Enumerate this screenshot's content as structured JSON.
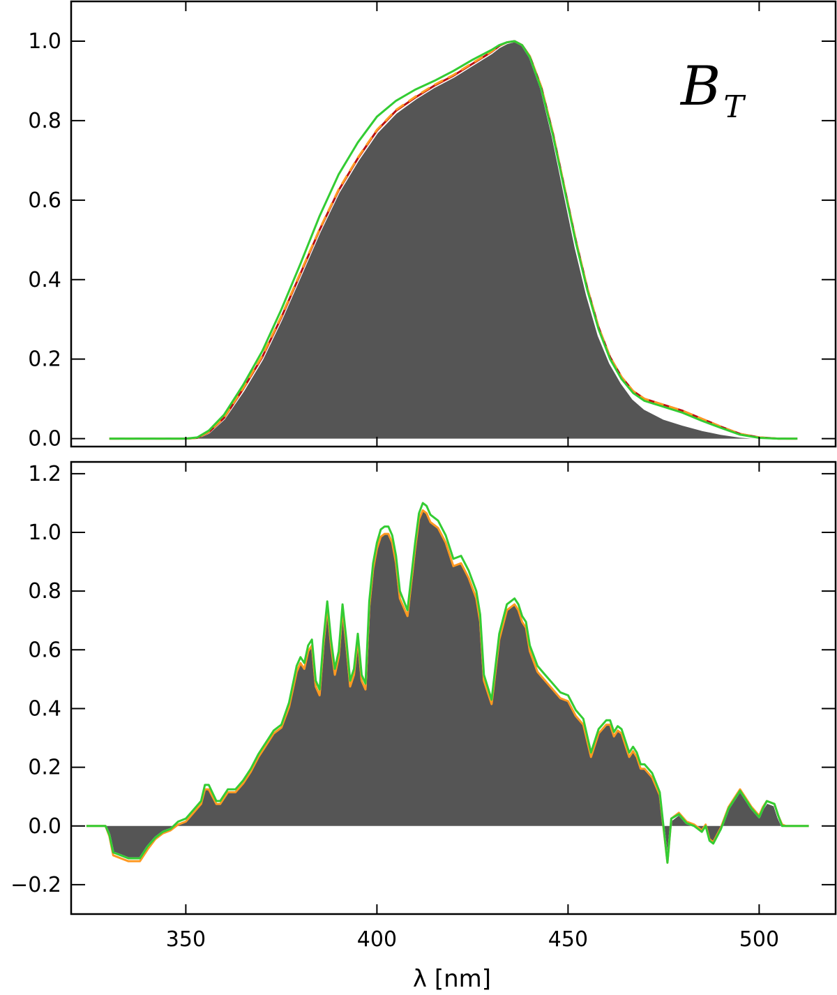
{
  "colors": {
    "fill": "#555555",
    "white_line": "#ffffff",
    "red_line": "#bb1111",
    "orange_line": "#ff9922",
    "green_line": "#33cc33",
    "axes": "#000000"
  },
  "chart_data": [
    {
      "type": "area",
      "panel": "top",
      "title": "",
      "annotation": {
        "main": "B",
        "sub": "T"
      },
      "xlabel": "",
      "ylabel": "",
      "xlim": [
        320,
        520
      ],
      "ylim": [
        -0.02,
        1.1
      ],
      "xticks": [
        350,
        400,
        450,
        500
      ],
      "yticks": [
        0.0,
        0.2,
        0.4,
        0.6,
        0.8,
        1.0
      ],
      "ytick_labels": [
        "0.0",
        "0.2",
        "0.4",
        "0.6",
        "0.8",
        "1.0"
      ],
      "grid": false,
      "x": [
        330,
        340,
        350,
        353,
        356,
        360,
        365,
        370,
        375,
        380,
        385,
        390,
        395,
        400,
        405,
        410,
        415,
        420,
        425,
        430,
        432,
        434,
        436,
        438,
        440,
        443,
        446,
        449,
        452,
        455,
        458,
        461,
        464,
        467,
        470,
        475,
        480,
        485,
        490,
        495,
        500,
        505,
        510
      ],
      "series": [
        {
          "role": "fill",
          "style": "fill",
          "values": [
            0,
            0,
            0,
            0.002,
            0.015,
            0.05,
            0.12,
            0.2,
            0.3,
            0.41,
            0.52,
            0.62,
            0.7,
            0.77,
            0.82,
            0.855,
            0.885,
            0.91,
            0.94,
            0.97,
            0.985,
            0.995,
            1.0,
            0.99,
            0.96,
            0.88,
            0.76,
            0.62,
            0.48,
            0.36,
            0.26,
            0.19,
            0.14,
            0.1,
            0.075,
            0.05,
            0.035,
            0.022,
            0.012,
            0.005,
            0.001,
            0,
            0
          ]
        },
        {
          "role": "white",
          "style": "solid",
          "values": [
            0,
            0,
            0,
            0.002,
            0.015,
            0.05,
            0.12,
            0.2,
            0.3,
            0.41,
            0.52,
            0.62,
            0.7,
            0.77,
            0.82,
            0.855,
            0.885,
            0.91,
            0.94,
            0.97,
            0.985,
            0.995,
            1.0,
            0.99,
            0.96,
            0.88,
            0.76,
            0.62,
            0.48,
            0.36,
            0.26,
            0.19,
            0.14,
            0.1,
            0.075,
            0.05,
            0.035,
            0.022,
            0.012,
            0.005,
            0.001,
            0,
            0
          ]
        },
        {
          "role": "red",
          "style": "solid",
          "values": [
            0,
            0,
            0,
            0.002,
            0.016,
            0.052,
            0.125,
            0.205,
            0.305,
            0.415,
            0.525,
            0.625,
            0.705,
            0.775,
            0.825,
            0.858,
            0.888,
            0.913,
            0.943,
            0.973,
            0.988,
            0.997,
            1.0,
            0.99,
            0.962,
            0.885,
            0.77,
            0.635,
            0.5,
            0.38,
            0.28,
            0.205,
            0.155,
            0.12,
            0.1,
            0.085,
            0.07,
            0.05,
            0.03,
            0.012,
            0.003,
            0,
            0
          ]
        },
        {
          "role": "orange",
          "style": "dashed",
          "values": [
            0,
            0,
            0,
            0.002,
            0.017,
            0.053,
            0.127,
            0.208,
            0.308,
            0.418,
            0.527,
            0.627,
            0.707,
            0.777,
            0.827,
            0.86,
            0.89,
            0.915,
            0.945,
            0.974,
            0.989,
            0.997,
            1.0,
            0.99,
            0.962,
            0.885,
            0.77,
            0.635,
            0.5,
            0.38,
            0.28,
            0.205,
            0.155,
            0.12,
            0.1,
            0.085,
            0.07,
            0.05,
            0.03,
            0.012,
            0.003,
            0,
            0
          ]
        },
        {
          "role": "green",
          "style": "solid",
          "values": [
            0,
            0,
            0,
            0.003,
            0.02,
            0.06,
            0.135,
            0.22,
            0.325,
            0.44,
            0.56,
            0.665,
            0.745,
            0.81,
            0.85,
            0.878,
            0.9,
            0.925,
            0.953,
            0.978,
            0.99,
            0.997,
            1.0,
            0.99,
            0.96,
            0.88,
            0.765,
            0.63,
            0.495,
            0.375,
            0.275,
            0.2,
            0.15,
            0.115,
            0.095,
            0.08,
            0.065,
            0.045,
            0.027,
            0.01,
            0.002,
            0,
            0
          ]
        }
      ]
    },
    {
      "type": "area",
      "panel": "bottom",
      "title": "",
      "xlabel": "λ [nm]",
      "ylabel": "",
      "xlim": [
        320,
        520
      ],
      "ylim": [
        -0.3,
        1.24
      ],
      "xticks": [
        350,
        400,
        450,
        500
      ],
      "xtick_labels": [
        "350",
        "400",
        "450",
        "500"
      ],
      "yticks": [
        -0.2,
        0.0,
        0.2,
        0.4,
        0.6,
        0.8,
        1.0,
        1.2
      ],
      "ytick_labels": [
        "−0.2",
        "0.0",
        "0.2",
        "0.4",
        "0.6",
        "0.8",
        "1.0",
        "1.2"
      ],
      "grid": false,
      "x": [
        324,
        329,
        330,
        331,
        333,
        335,
        336,
        338,
        340,
        342,
        344,
        346,
        348,
        350,
        352,
        354,
        355,
        356,
        358,
        359,
        361,
        363,
        365,
        367,
        369,
        371,
        373,
        375,
        377,
        379,
        380,
        381,
        382,
        383,
        384,
        385,
        386,
        387,
        388,
        389,
        390,
        391,
        392,
        393,
        394,
        395,
        396,
        397,
        398,
        399,
        400,
        401,
        402,
        403,
        404,
        405,
        406,
        408,
        410,
        411,
        412,
        413,
        414,
        415,
        416,
        418,
        420,
        422,
        424,
        426,
        427,
        428,
        430,
        432,
        434,
        435,
        436,
        437,
        438,
        439,
        440,
        442,
        444,
        446,
        448,
        450,
        452,
        454,
        456,
        458,
        460,
        461,
        462,
        463,
        464,
        465,
        466,
        467,
        468,
        469,
        470,
        472,
        474,
        476,
        477,
        479,
        481,
        483,
        485,
        486,
        487,
        488,
        490,
        492,
        494,
        495,
        496,
        498,
        500,
        501,
        502,
        504,
        505,
        506,
        507,
        508,
        509,
        510,
        513
      ],
      "series": [
        {
          "role": "fill",
          "style": "fill",
          "values": [
            0,
            0,
            -0.03,
            -0.09,
            -0.1,
            -0.11,
            -0.11,
            -0.11,
            -0.07,
            -0.04,
            -0.02,
            -0.01,
            0.01,
            0.02,
            0.05,
            0.08,
            0.13,
            0.13,
            0.08,
            0.08,
            0.12,
            0.12,
            0.15,
            0.19,
            0.24,
            0.28,
            0.32,
            0.34,
            0.41,
            0.53,
            0.56,
            0.54,
            0.6,
            0.62,
            0.48,
            0.45,
            0.62,
            0.75,
            0.62,
            0.52,
            0.58,
            0.74,
            0.62,
            0.48,
            0.52,
            0.64,
            0.5,
            0.47,
            0.75,
            0.88,
            0.95,
            0.99,
            1.0,
            1.0,
            0.97,
            0.9,
            0.78,
            0.72,
            0.95,
            1.05,
            1.08,
            1.07,
            1.04,
            1.03,
            1.02,
            0.97,
            0.89,
            0.9,
            0.85,
            0.78,
            0.7,
            0.5,
            0.42,
            0.64,
            0.74,
            0.75,
            0.76,
            0.74,
            0.7,
            0.68,
            0.6,
            0.53,
            0.5,
            0.47,
            0.44,
            0.43,
            0.38,
            0.35,
            0.24,
            0.32,
            0.35,
            0.35,
            0.31,
            0.33,
            0.32,
            0.28,
            0.24,
            0.26,
            0.24,
            0.2,
            0.2,
            0.17,
            0.11,
            -0.12,
            0.02,
            0.04,
            0.01,
            0.0,
            -0.02,
            0.0,
            -0.05,
            -0.06,
            -0.01,
            0.06,
            0.1,
            0.12,
            0.1,
            0.06,
            0.03,
            0.06,
            0.08,
            0.07,
            0.03,
            0.0,
            0,
            0,
            0,
            0,
            0
          ]
        },
        {
          "role": "white",
          "style": "solid",
          "values": [
            0,
            0,
            -0.03,
            -0.09,
            -0.1,
            -0.11,
            -0.11,
            -0.11,
            -0.07,
            -0.04,
            -0.02,
            -0.01,
            0.01,
            0.02,
            0.05,
            0.08,
            0.13,
            0.13,
            0.08,
            0.08,
            0.12,
            0.12,
            0.15,
            0.19,
            0.24,
            0.28,
            0.32,
            0.34,
            0.41,
            0.53,
            0.56,
            0.54,
            0.6,
            0.62,
            0.48,
            0.45,
            0.62,
            0.75,
            0.62,
            0.52,
            0.58,
            0.74,
            0.62,
            0.48,
            0.52,
            0.64,
            0.5,
            0.47,
            0.75,
            0.88,
            0.95,
            0.99,
            1.0,
            1.0,
            0.97,
            0.9,
            0.78,
            0.72,
            0.95,
            1.05,
            1.08,
            1.07,
            1.04,
            1.03,
            1.02,
            0.97,
            0.89,
            0.9,
            0.85,
            0.78,
            0.7,
            0.5,
            0.42,
            0.64,
            0.74,
            0.75,
            0.76,
            0.74,
            0.7,
            0.68,
            0.6,
            0.53,
            0.5,
            0.47,
            0.44,
            0.43,
            0.38,
            0.35,
            0.24,
            0.32,
            0.35,
            0.35,
            0.31,
            0.33,
            0.32,
            0.28,
            0.24,
            0.26,
            0.24,
            0.2,
            0.2,
            0.17,
            0.11,
            -0.12,
            0.02,
            0.04,
            0.01,
            0.0,
            -0.02,
            0.0,
            -0.05,
            -0.06,
            -0.01,
            0.06,
            0.1,
            0.12,
            0.1,
            0.06,
            0.03,
            0.06,
            0.08,
            0.07,
            0.03,
            0.0,
            0,
            0,
            0,
            0,
            0
          ]
        },
        {
          "role": "orange",
          "style": "solid",
          "values": [
            0,
            0,
            -0.035,
            -0.1,
            -0.11,
            -0.12,
            -0.12,
            -0.12,
            -0.08,
            -0.045,
            -0.025,
            -0.015,
            0.005,
            0.015,
            0.045,
            0.075,
            0.125,
            0.125,
            0.075,
            0.075,
            0.115,
            0.115,
            0.145,
            0.185,
            0.235,
            0.275,
            0.315,
            0.335,
            0.405,
            0.525,
            0.555,
            0.535,
            0.595,
            0.615,
            0.475,
            0.445,
            0.615,
            0.745,
            0.615,
            0.515,
            0.575,
            0.735,
            0.615,
            0.475,
            0.515,
            0.635,
            0.495,
            0.465,
            0.745,
            0.875,
            0.945,
            0.985,
            0.995,
            0.995,
            0.965,
            0.895,
            0.775,
            0.715,
            0.945,
            1.045,
            1.075,
            1.065,
            1.035,
            1.025,
            1.015,
            0.965,
            0.885,
            0.895,
            0.845,
            0.775,
            0.695,
            0.495,
            0.415,
            0.635,
            0.735,
            0.745,
            0.755,
            0.735,
            0.695,
            0.675,
            0.595,
            0.525,
            0.495,
            0.465,
            0.435,
            0.425,
            0.375,
            0.345,
            0.235,
            0.315,
            0.345,
            0.345,
            0.305,
            0.325,
            0.315,
            0.275,
            0.235,
            0.255,
            0.235,
            0.195,
            0.195,
            0.165,
            0.105,
            -0.125,
            0.025,
            0.045,
            0.015,
            0.005,
            -0.015,
            0.005,
            -0.045,
            -0.055,
            -0.005,
            0.065,
            0.105,
            0.125,
            0.105,
            0.065,
            0.035,
            0.065,
            0.085,
            0.075,
            0.035,
            0.005,
            0,
            0,
            0,
            0,
            0
          ]
        },
        {
          "role": "green",
          "style": "solid",
          "values": [
            0,
            0,
            -0.03,
            -0.09,
            -0.1,
            -0.11,
            -0.11,
            -0.11,
            -0.07,
            -0.04,
            -0.02,
            -0.01,
            0.015,
            0.025,
            0.055,
            0.085,
            0.14,
            0.14,
            0.085,
            0.085,
            0.125,
            0.125,
            0.155,
            0.195,
            0.245,
            0.285,
            0.325,
            0.345,
            0.42,
            0.545,
            0.575,
            0.555,
            0.615,
            0.635,
            0.495,
            0.465,
            0.635,
            0.765,
            0.635,
            0.535,
            0.595,
            0.755,
            0.635,
            0.495,
            0.535,
            0.655,
            0.515,
            0.485,
            0.765,
            0.895,
            0.965,
            1.01,
            1.02,
            1.02,
            0.99,
            0.92,
            0.8,
            0.735,
            0.965,
            1.065,
            1.1,
            1.09,
            1.06,
            1.05,
            1.04,
            0.99,
            0.91,
            0.92,
            0.87,
            0.8,
            0.72,
            0.515,
            0.43,
            0.655,
            0.755,
            0.765,
            0.775,
            0.755,
            0.715,
            0.695,
            0.615,
            0.545,
            0.515,
            0.485,
            0.455,
            0.445,
            0.395,
            0.365,
            0.25,
            0.33,
            0.36,
            0.36,
            0.32,
            0.34,
            0.33,
            0.29,
            0.25,
            0.27,
            0.25,
            0.21,
            0.21,
            0.18,
            0.115,
            -0.125,
            0.025,
            0.04,
            0.01,
            0.0,
            -0.02,
            0.0,
            -0.05,
            -0.06,
            -0.01,
            0.06,
            0.1,
            0.12,
            0.1,
            0.06,
            0.03,
            0.06,
            0.085,
            0.075,
            0.035,
            0.0,
            0,
            0,
            0,
            0,
            0
          ]
        }
      ]
    }
  ]
}
